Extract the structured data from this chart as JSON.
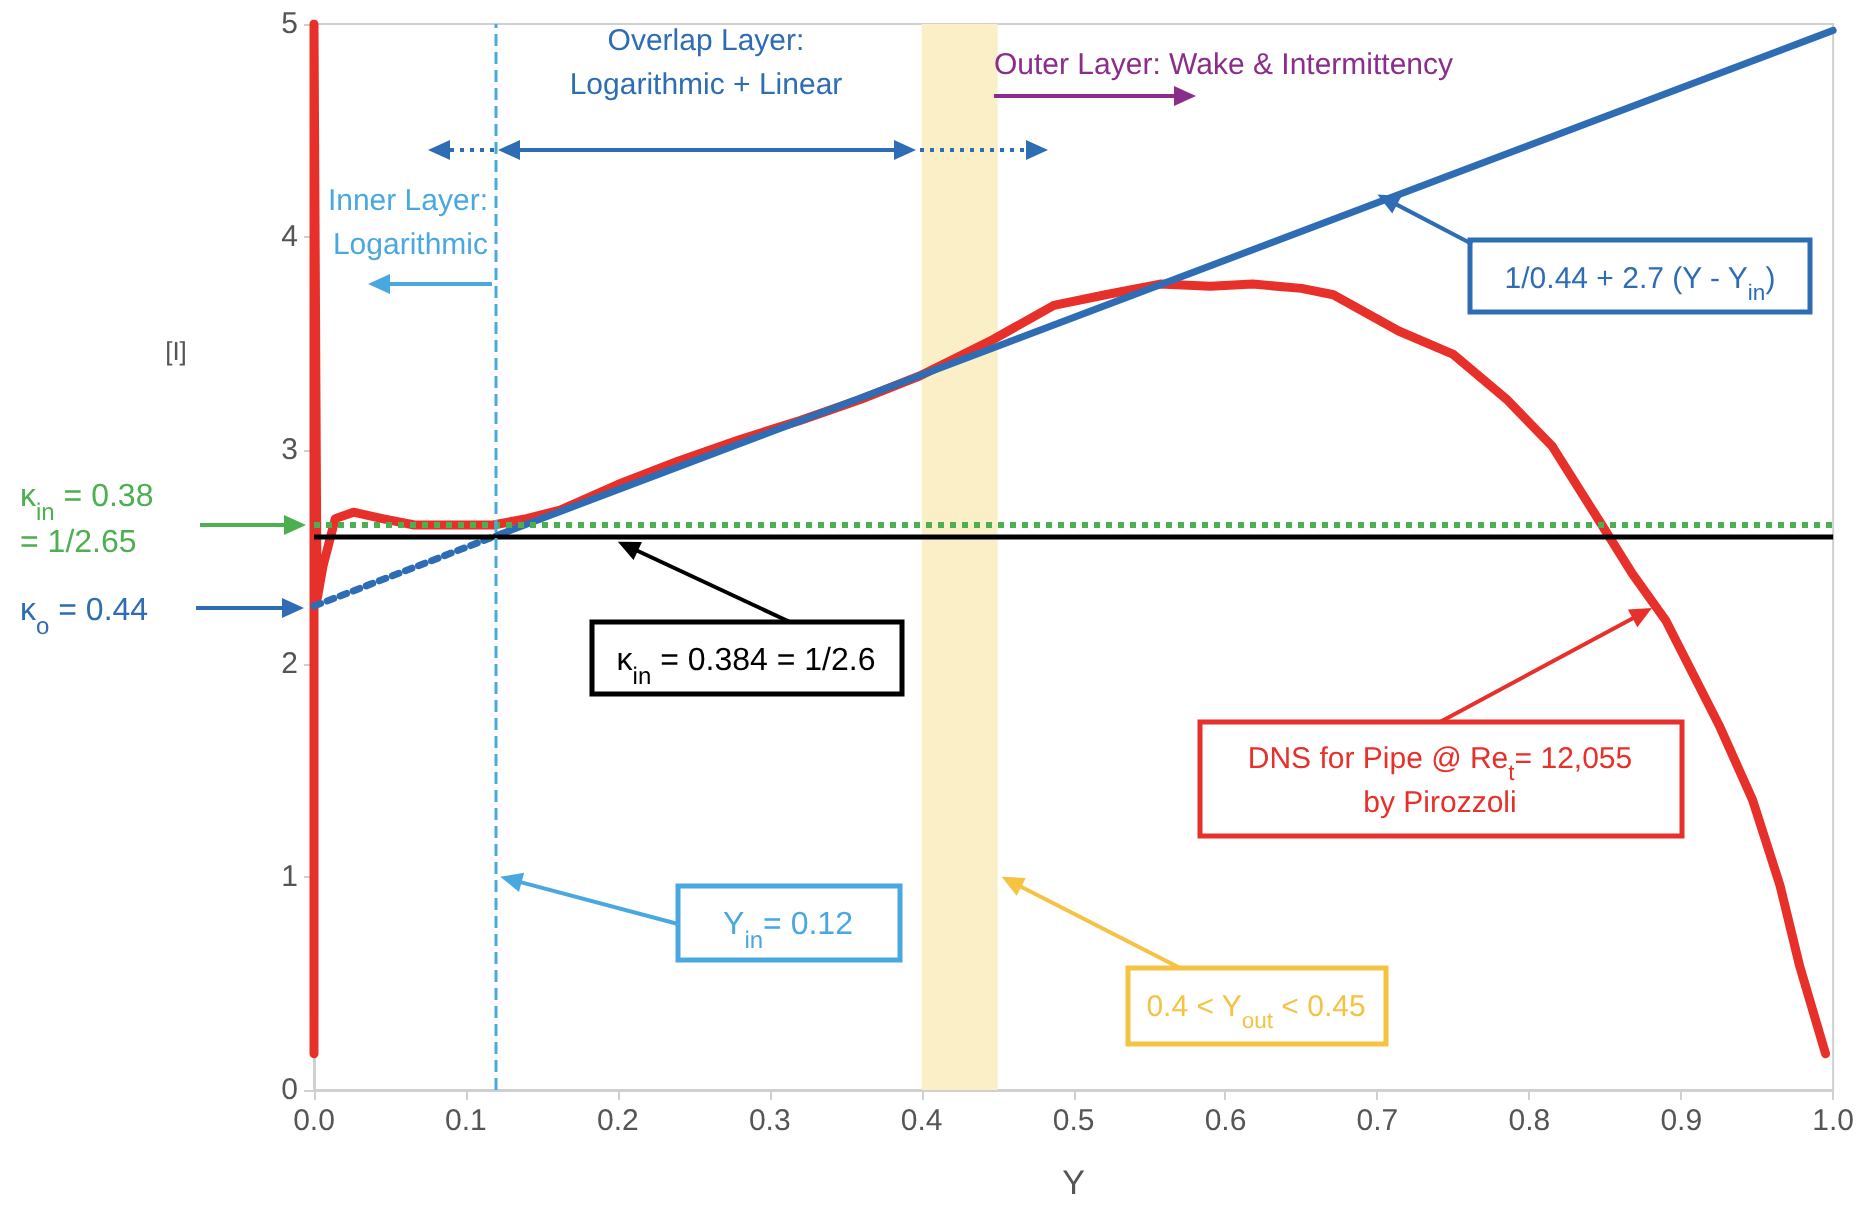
{
  "chart_data": {
    "type": "line",
    "xlabel": "Y",
    "ylabel": "[I]",
    "xlim": [
      0,
      1
    ],
    "ylim": [
      0,
      5
    ],
    "xticks": [
      {
        "value": 0,
        "label": "0.0"
      },
      0.1,
      0.2,
      0.3,
      0.4,
      0.5,
      0.6,
      0.7,
      0.8,
      0.9,
      {
        "value": 1,
        "label": "1.0"
      }
    ],
    "yticks": [
      0,
      1,
      2,
      3,
      4,
      5
    ],
    "marker": "none",
    "series": [
      {
        "color": "#e8302a",
        "line_style": "solid",
        "x": [
          0,
          0,
          0.002,
          0.006,
          0.014,
          0.026,
          0.045,
          0.066,
          0.09,
          0.118,
          0.14,
          0.162,
          0.2,
          0.24,
          0.28,
          0.32,
          0.36,
          0.399,
          0.447,
          0.487,
          0.521,
          0.557,
          0.59,
          0.618,
          0.65,
          0.671,
          0.714,
          0.75,
          0.785,
          0.815,
          0.846,
          0.868,
          0.89,
          0.925,
          0.947,
          0.965,
          0.978,
          0.995
        ],
        "values": [
          0.17,
          5,
          2.3,
          2.46,
          2.68,
          2.71,
          2.68,
          2.65,
          2.65,
          2.65,
          2.68,
          2.72,
          2.84,
          2.95,
          3.05,
          3.14,
          3.24,
          3.35,
          3.52,
          3.68,
          3.73,
          3.78,
          3.77,
          3.78,
          3.76,
          3.73,
          3.56,
          3.45,
          3.24,
          3.02,
          2.67,
          2.42,
          2.2,
          1.71,
          1.36,
          0.96,
          0.58,
          0.17
        ]
      },
      {
        "color": "#2e6db4",
        "line_style": "dotted",
        "x": [
          0,
          0.12
        ],
        "values": [
          2.27,
          2.6
        ]
      },
      {
        "color": "#2e6db4",
        "line_style": "solid",
        "x": [
          0.12,
          1
        ],
        "values": [
          2.6,
          4.97
        ]
      }
    ],
    "ref_lines": [
      {
        "axis": "y",
        "value": 2.6,
        "label": "κ$_{in}$ = 0.384 = 1/2.6",
        "color": "#000000",
        "line_style": "solid"
      },
      {
        "axis": "y",
        "value": 2.65,
        "label": "κ$_{in}$ = 0.38\n= 1/2.65",
        "color": "#4caf50",
        "line_style": "dotted"
      },
      {
        "axis": "x",
        "value": 0.12,
        "label": "Y$_{in}$= 0.12",
        "color": "#4aa8e0",
        "line_style": "dashed"
      }
    ],
    "bands": [
      {
        "axis": "x",
        "from": 0.4,
        "to": 0.45,
        "color": "#fbefc8"
      }
    ],
    "annotations": [
      "Overlap Layer:\nLogarithmic + Linear",
      "Inner Layer:\nLogarithmic",
      "Outer Layer: Wake & Intermittency",
      {
        "text": "1/0.44 + 2.7 (Y - Y$_{in}$)",
        "x": 0.7,
        "y": 4.2
      },
      "DNS for Pipe @ Re$_{t}$= 12,055\nby Pirozzoli",
      "κ$_{o}$ = 0.44",
      "0.4 < Y$_{out}$ < 0.45"
    ]
  }
}
